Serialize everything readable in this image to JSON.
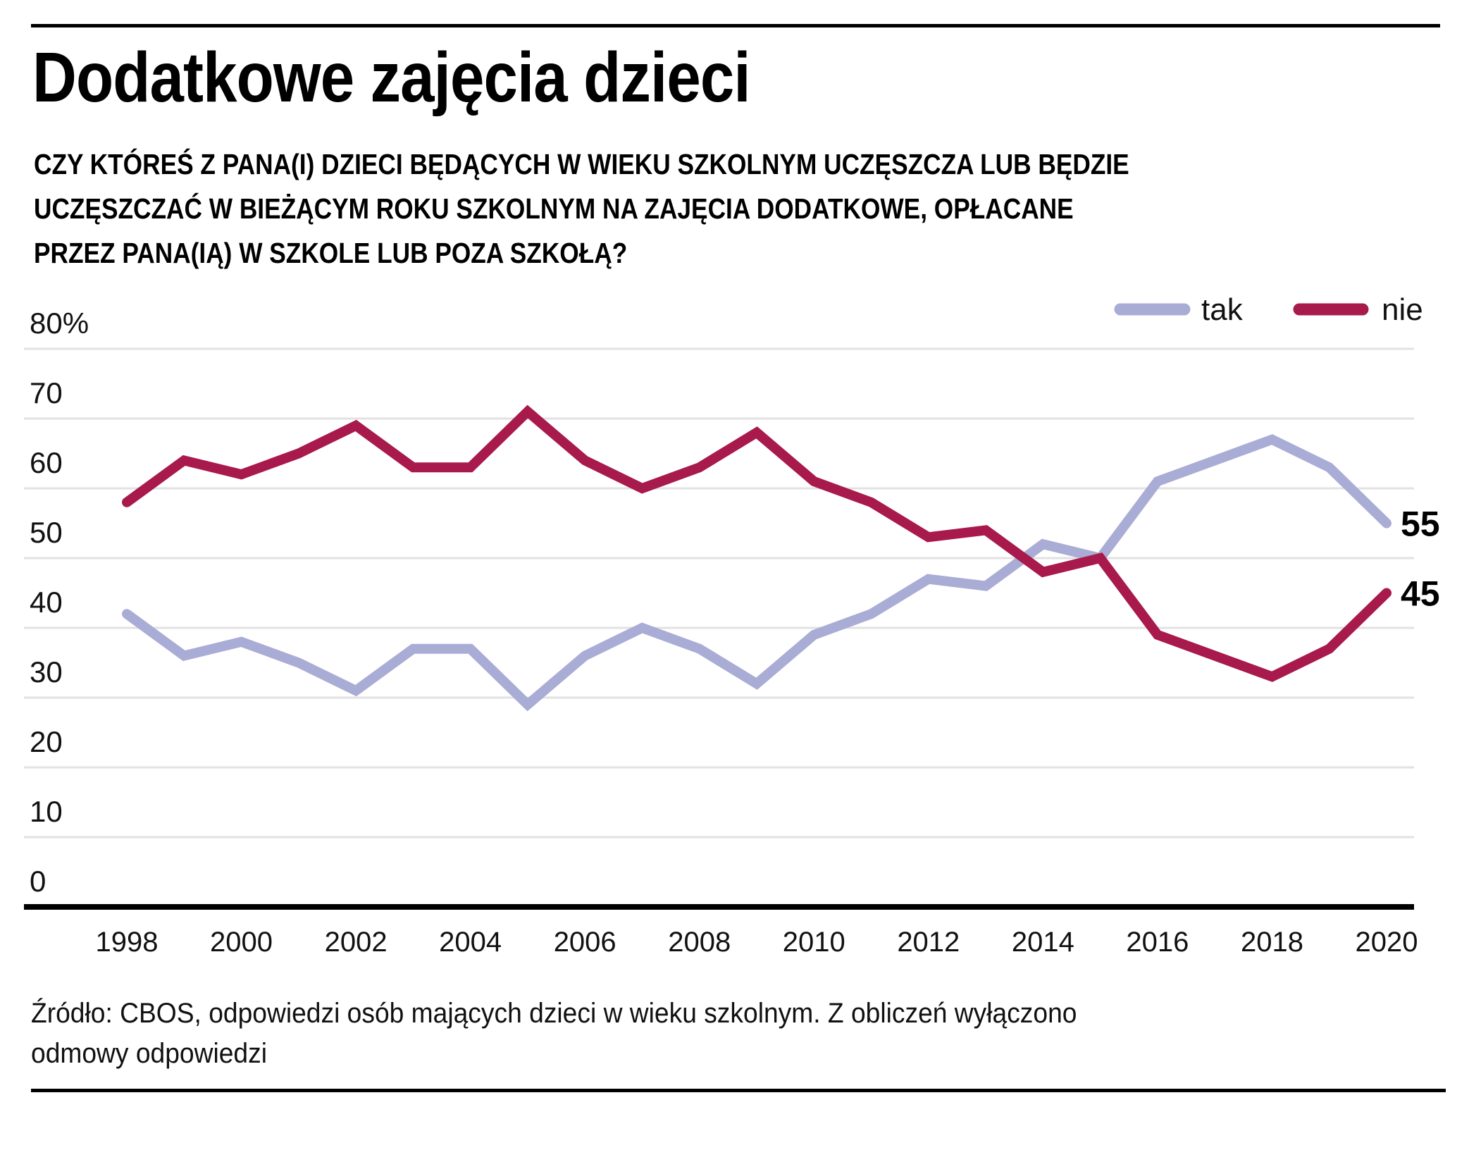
{
  "header": {
    "title": "Dodatkowe zajęcia dzieci",
    "subtitle_lines": [
      "CZY KTÓREŚ Z PANA(I) DZIECI BĘDĄCYCH W WIEKU SZKOLNYM UCZĘSZCZA LUB BĘDZIE",
      "UCZĘSZCZAĆ W BIEŻĄCYM ROKU SZKOLNYM NA ZAJĘCIA DODATKOWE, OPŁACANE",
      "PRZEZ PANA(IĄ) W SZKOLE LUB POZA SZKOŁĄ?"
    ]
  },
  "footer": {
    "lines": [
      "Źródło: CBOS, odpowiedzi osób mających dzieci w wieku szkolnym. Z obliczeń wyłączono",
      "odmowy odpowiedzi"
    ]
  },
  "chart_data": {
    "type": "line",
    "title": "Dodatkowe zajęcia dzieci",
    "xlabel": "",
    "ylabel": "",
    "x": [
      1998,
      1999,
      2000,
      2001,
      2002,
      2003,
      2004,
      2005,
      2006,
      2007,
      2008,
      2009,
      2010,
      2011,
      2012,
      2013,
      2014,
      2015,
      2016,
      2017,
      2018,
      2019,
      2020
    ],
    "x_tick_labels": [
      "1998",
      "2000",
      "2002",
      "2004",
      "2006",
      "2008",
      "2010",
      "2012",
      "2014",
      "2016",
      "2018",
      "2020"
    ],
    "y_ticks": [
      0,
      10,
      20,
      30,
      40,
      50,
      60,
      70,
      80
    ],
    "y_tick_labels": [
      "0",
      "10",
      "20",
      "30",
      "40",
      "50",
      "60",
      "70",
      "80%"
    ],
    "ylim": [
      0,
      80
    ],
    "xlim": [
      1998,
      2020
    ],
    "grid": true,
    "legend_position": "top-right",
    "series": [
      {
        "name": "tak",
        "color": "#a9acd5",
        "values": [
          42,
          36,
          38,
          35,
          31,
          37,
          37,
          29,
          36,
          40,
          37,
          32,
          39,
          42,
          47,
          46,
          52,
          50,
          61,
          64,
          67,
          63,
          55
        ],
        "end_label": "55"
      },
      {
        "name": "nie",
        "color": "#a8194c",
        "values": [
          58,
          64,
          62,
          65,
          69,
          63,
          63,
          71,
          64,
          60,
          63,
          68,
          61,
          58,
          53,
          54,
          48,
          50,
          39,
          36,
          33,
          37,
          45
        ],
        "end_label": "45"
      }
    ]
  }
}
